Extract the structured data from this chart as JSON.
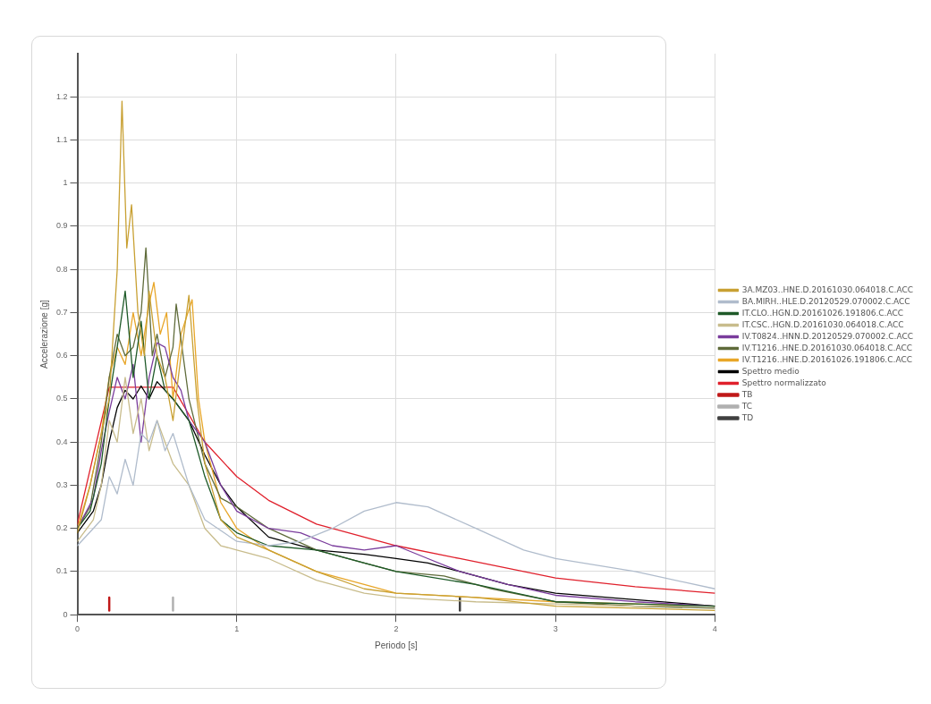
{
  "chart_data": {
    "type": "line",
    "xlabel": "Periodo [s]",
    "ylabel": "Accelerazione [g]",
    "xlim": [
      0,
      4
    ],
    "xticks": [
      0,
      1,
      2,
      3,
      4
    ],
    "ylim": [
      0,
      1.3
    ],
    "yticks": [
      0,
      0.1,
      0.2,
      0.3,
      0.4,
      0.5,
      0.6,
      0.7,
      0.8,
      0.9,
      1,
      1.1,
      1.2
    ],
    "grid": true,
    "legend": "right",
    "marker": "none",
    "line_style": "solid",
    "series": [
      {
        "name": "3A.MZ03..HNE.D.20161030.064018.C.ACC",
        "color": "#c8a032",
        "x": [
          0,
          0.08,
          0.15,
          0.2,
          0.25,
          0.28,
          0.31,
          0.34,
          0.38,
          0.42,
          0.45,
          0.5,
          0.55,
          0.6,
          0.65,
          0.7,
          0.75,
          0.8,
          0.9,
          1,
          1.2,
          1.5,
          1.8,
          2,
          2.5,
          3,
          3.5,
          4
        ],
        "values": [
          0.19,
          0.3,
          0.42,
          0.5,
          0.8,
          1.19,
          0.85,
          0.95,
          0.7,
          0.6,
          0.75,
          0.6,
          0.55,
          0.45,
          0.6,
          0.74,
          0.5,
          0.35,
          0.22,
          0.18,
          0.15,
          0.1,
          0.06,
          0.05,
          0.04,
          0.02,
          0.015,
          0.01
        ]
      },
      {
        "name": "BA.MIRH..HLE.D.20120529.070002.C.ACC",
        "color": "#b0bccc",
        "x": [
          0,
          0.1,
          0.15,
          0.2,
          0.25,
          0.3,
          0.35,
          0.4,
          0.45,
          0.5,
          0.55,
          0.6,
          0.7,
          0.8,
          1,
          1.2,
          1.4,
          1.6,
          1.8,
          2,
          2.2,
          2.5,
          2.8,
          3,
          3.5,
          4
        ],
        "values": [
          0.16,
          0.2,
          0.22,
          0.32,
          0.28,
          0.36,
          0.3,
          0.42,
          0.4,
          0.45,
          0.38,
          0.42,
          0.3,
          0.22,
          0.17,
          0.16,
          0.17,
          0.2,
          0.24,
          0.26,
          0.25,
          0.2,
          0.15,
          0.13,
          0.1,
          0.06
        ]
      },
      {
        "name": "IT.CLO..HGN.D.20161026.191806.C.ACC",
        "color": "#1e5a28",
        "x": [
          0,
          0.08,
          0.15,
          0.2,
          0.25,
          0.3,
          0.35,
          0.4,
          0.45,
          0.5,
          0.55,
          0.6,
          0.7,
          0.8,
          0.9,
          1,
          1.2,
          1.5,
          1.8,
          2,
          2.5,
          3,
          3.5,
          4
        ],
        "values": [
          0.2,
          0.24,
          0.35,
          0.5,
          0.62,
          0.75,
          0.55,
          0.68,
          0.5,
          0.6,
          0.52,
          0.5,
          0.45,
          0.32,
          0.22,
          0.19,
          0.16,
          0.15,
          0.12,
          0.1,
          0.07,
          0.03,
          0.025,
          0.02
        ]
      },
      {
        "name": "IT.CSC..HGN.D.20161030.064018.C.ACC",
        "color": "#c8bc8c",
        "x": [
          0,
          0.1,
          0.15,
          0.2,
          0.25,
          0.3,
          0.35,
          0.4,
          0.45,
          0.5,
          0.55,
          0.6,
          0.7,
          0.8,
          0.9,
          1,
          1.2,
          1.5,
          1.8,
          2,
          2.5,
          3,
          3.5,
          4
        ],
        "values": [
          0.17,
          0.22,
          0.3,
          0.45,
          0.4,
          0.55,
          0.42,
          0.5,
          0.38,
          0.45,
          0.4,
          0.35,
          0.3,
          0.2,
          0.16,
          0.15,
          0.13,
          0.08,
          0.05,
          0.04,
          0.03,
          0.025,
          0.02,
          0.02
        ]
      },
      {
        "name": "IV.T0824..HNN.D.20120529.070002.C.ACC",
        "color": "#7a3c9c",
        "x": [
          0,
          0.1,
          0.15,
          0.2,
          0.25,
          0.3,
          0.35,
          0.4,
          0.45,
          0.5,
          0.55,
          0.6,
          0.65,
          0.7,
          0.8,
          0.9,
          1,
          1.2,
          1.4,
          1.6,
          1.8,
          2,
          2.2,
          2.4,
          2.7,
          3,
          3.5,
          4
        ],
        "values": [
          0.2,
          0.27,
          0.38,
          0.47,
          0.55,
          0.5,
          0.58,
          0.4,
          0.55,
          0.63,
          0.62,
          0.55,
          0.52,
          0.45,
          0.4,
          0.3,
          0.24,
          0.2,
          0.19,
          0.16,
          0.15,
          0.16,
          0.13,
          0.1,
          0.07,
          0.045,
          0.03,
          0.02
        ]
      },
      {
        "name": "IV.T1216..HNE.D.20161030.064018.C.ACC",
        "color": "#5f6b3a",
        "x": [
          0,
          0.08,
          0.15,
          0.2,
          0.25,
          0.3,
          0.35,
          0.4,
          0.43,
          0.47,
          0.5,
          0.55,
          0.6,
          0.62,
          0.7,
          0.8,
          0.9,
          1,
          1.2,
          1.5,
          1.8,
          2,
          2.3,
          2.6,
          3,
          3.5,
          4
        ],
        "values": [
          0.2,
          0.25,
          0.4,
          0.55,
          0.65,
          0.6,
          0.62,
          0.7,
          0.85,
          0.6,
          0.65,
          0.55,
          0.62,
          0.72,
          0.5,
          0.35,
          0.27,
          0.25,
          0.2,
          0.15,
          0.12,
          0.1,
          0.09,
          0.06,
          0.03,
          0.02,
          0.015
        ]
      },
      {
        "name": "IV.T1216..HNE.D.20161026.191806.C.ACC",
        "color": "#e8a628",
        "x": [
          0,
          0.08,
          0.15,
          0.2,
          0.25,
          0.3,
          0.35,
          0.4,
          0.45,
          0.48,
          0.52,
          0.56,
          0.6,
          0.65,
          0.72,
          0.76,
          0.8,
          0.9,
          1,
          1.2,
          1.5,
          1.8,
          2,
          2.5,
          3,
          3.5,
          4
        ],
        "values": [
          0.2,
          0.3,
          0.42,
          0.55,
          0.62,
          0.58,
          0.7,
          0.6,
          0.72,
          0.77,
          0.65,
          0.7,
          0.5,
          0.65,
          0.73,
          0.5,
          0.4,
          0.26,
          0.2,
          0.15,
          0.1,
          0.07,
          0.05,
          0.04,
          0.03,
          0.025,
          0.02
        ]
      },
      {
        "name": "Spettro medio",
        "color": "#000000",
        "x": [
          0,
          0.1,
          0.15,
          0.2,
          0.25,
          0.3,
          0.35,
          0.4,
          0.45,
          0.5,
          0.55,
          0.6,
          0.7,
          0.8,
          0.9,
          1,
          1.2,
          1.5,
          1.8,
          2,
          2.2,
          2.4,
          2.7,
          3,
          3.5,
          4
        ],
        "values": [
          0.19,
          0.24,
          0.3,
          0.4,
          0.48,
          0.52,
          0.5,
          0.53,
          0.5,
          0.54,
          0.52,
          0.5,
          0.45,
          0.37,
          0.3,
          0.25,
          0.18,
          0.15,
          0.14,
          0.13,
          0.12,
          0.1,
          0.07,
          0.05,
          0.035,
          0.02
        ]
      },
      {
        "name": "Spettro normalizzato",
        "color": "#e0202c",
        "x": [
          0,
          0.2,
          0.6,
          0.8,
          1,
          1.2,
          1.5,
          2,
          2.4,
          3,
          3.5,
          4
        ],
        "values": [
          0.21,
          0.527,
          0.527,
          0.4,
          0.32,
          0.265,
          0.21,
          0.16,
          0.13,
          0.085,
          0.065,
          0.05
        ]
      },
      {
        "name": "TB",
        "color": "#c01818",
        "x": [
          0.2,
          0.2
        ],
        "values": [
          0.01,
          0.04
        ]
      },
      {
        "name": "TC",
        "color": "#b0b0b0",
        "x": [
          0.6,
          0.6
        ],
        "values": [
          0.01,
          0.04
        ]
      },
      {
        "name": "TD",
        "color": "#404040",
        "x": [
          2.4,
          2.4
        ],
        "values": [
          0.01,
          0.04
        ]
      }
    ]
  }
}
